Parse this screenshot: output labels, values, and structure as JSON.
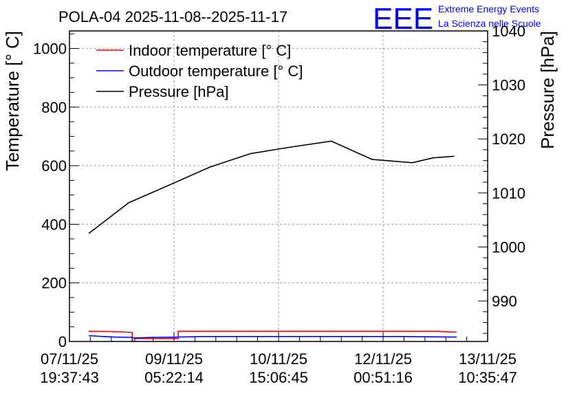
{
  "chart_data": {
    "type": "line",
    "title": "POLA-04 2025-11-08--2025-11-17",
    "x_tick_labels": [
      {
        "date": "07/11/25",
        "time": "19:37:43"
      },
      {
        "date": "09/11/25",
        "time": "05:22:14"
      },
      {
        "date": "10/11/25",
        "time": "15:06:45"
      },
      {
        "date": "12/11/25",
        "time": "00:51:16"
      },
      {
        "date": "13/11/25",
        "time": "10:35:47"
      }
    ],
    "x_range_days": [
      0,
      5.0
    ],
    "ylabel_left": "Temperature [° C]",
    "ylim_left": [
      0,
      1060
    ],
    "yticks_left": [
      0,
      200,
      400,
      600,
      800,
      1000
    ],
    "ylabel_right": "Pressure [hPa]",
    "ylim_right": [
      982.5,
      1040
    ],
    "yticks_right": [
      990,
      1000,
      1010,
      1020,
      1030,
      1040
    ],
    "grid": true,
    "legend_position": "top-left",
    "series": [
      {
        "name": "Indoor temperature [° C]",
        "axis": "left",
        "color": "#ff0000",
        "x": [
          0.23,
          0.5,
          0.75,
          0.75,
          0.78,
          0.78,
          1.3,
          1.3,
          1.64,
          1.64,
          4.4,
          4.5,
          4.63
        ],
        "y": [
          35,
          34,
          31,
          0,
          0,
          10,
          10,
          35,
          35,
          35,
          35,
          33,
          32
        ]
      },
      {
        "name": "Outdoor temperature [° C]",
        "axis": "left",
        "color": "#0000ff",
        "x": [
          0.23,
          0.4,
          0.55,
          0.75,
          0.78,
          1.0,
          1.3,
          1.6,
          2.1,
          2.6,
          3.1,
          3.6,
          4.0,
          4.3,
          4.63
        ],
        "y": [
          20,
          17,
          15,
          14,
          12,
          14,
          15,
          17,
          17,
          17,
          17,
          17,
          17,
          16,
          15
        ]
      },
      {
        "name": "Pressure [hPa]",
        "axis": "right",
        "color": "#000000",
        "x": [
          0.23,
          0.71,
          1.2,
          1.68,
          2.17,
          2.65,
          3.13,
          3.62,
          4.1,
          4.35,
          4.6
        ],
        "y": [
          1002.5,
          1008.2,
          1011.5,
          1014.8,
          1017.3,
          1018.5,
          1019.6,
          1016.2,
          1015.6,
          1016.5,
          1016.8
        ]
      }
    ]
  },
  "logo": {
    "mark": "EEE",
    "line1": "Extreme Energy Events",
    "line2": "La Scienza nelle Scuole",
    "color": "#0000ff"
  }
}
